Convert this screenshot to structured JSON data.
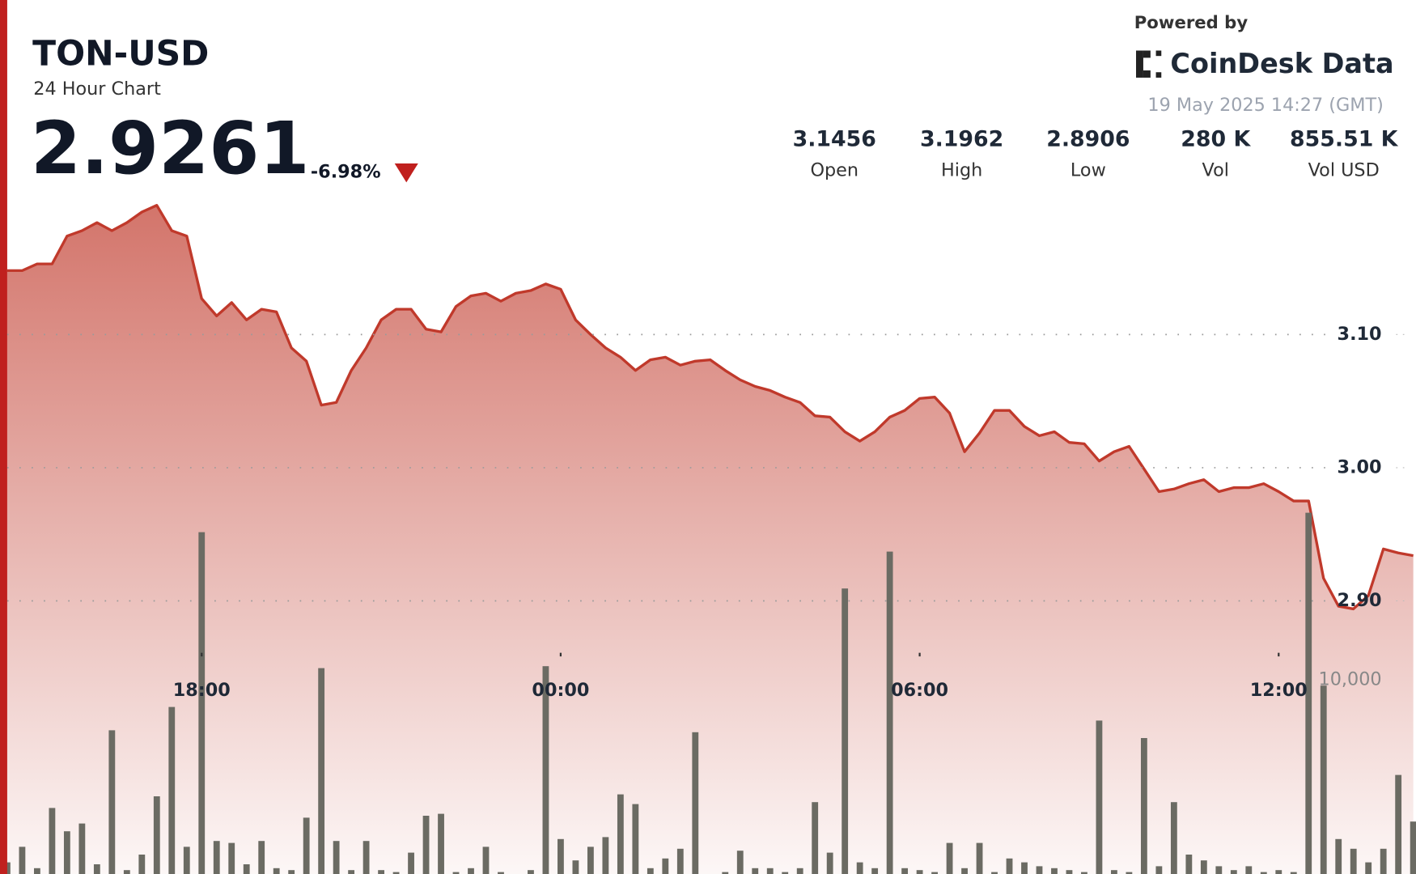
{
  "header": {
    "symbol": "TON-USD",
    "subtitle": "24 Hour Chart",
    "price": 2.9261,
    "change": "-6.98%",
    "powered_by": "Powered by",
    "brand": "CoinDesk Data",
    "timestamp": "19 May 2025 14:27 (GMT)",
    "stats": [
      {
        "value": 3.1456,
        "label": "Open"
      },
      {
        "value": 3.1962,
        "label": "High"
      },
      {
        "value": 2.8906,
        "label": "Low"
      },
      {
        "value": "280 K",
        "label": "Vol"
      },
      {
        "value": "855.51 K",
        "label": "Vol USD"
      }
    ]
  },
  "chart_data": {
    "type": "area",
    "x": [
      "14:45",
      "15:00",
      "15:15",
      "15:30",
      "15:45",
      "16:00",
      "16:15",
      "16:30",
      "16:45",
      "17:00",
      "17:15",
      "17:30",
      "17:45",
      "18:00",
      "18:15",
      "18:30",
      "18:45",
      "19:00",
      "19:15",
      "19:30",
      "19:45",
      "20:00",
      "20:15",
      "20:30",
      "20:45",
      "21:00",
      "21:15",
      "21:30",
      "21:45",
      "22:00",
      "22:15",
      "22:30",
      "22:45",
      "23:00",
      "23:15",
      "23:30",
      "23:45",
      "00:00",
      "00:15",
      "00:30",
      "00:45",
      "01:00",
      "01:15",
      "01:30",
      "01:45",
      "02:00",
      "02:15",
      "02:30",
      "02:45",
      "03:00",
      "03:15",
      "03:30",
      "03:45",
      "04:00",
      "04:15",
      "04:30",
      "04:45",
      "05:00",
      "05:15",
      "05:30",
      "05:45",
      "06:00",
      "06:15",
      "06:30",
      "06:45",
      "07:00",
      "07:15",
      "07:30",
      "07:45",
      "08:00",
      "08:15",
      "08:30",
      "08:45",
      "09:00",
      "09:15",
      "09:30",
      "09:45",
      "10:00",
      "10:15",
      "10:30",
      "10:45",
      "11:00",
      "11:15",
      "11:30",
      "11:45",
      "12:00",
      "12:15",
      "12:30",
      "12:45",
      "13:00",
      "13:15",
      "13:30",
      "13:45",
      "14:00",
      "14:15"
    ],
    "series": [
      {
        "name": "Price",
        "color": "#c0392b",
        "values": [
          3.148,
          3.148,
          3.153,
          3.153,
          3.174,
          3.178,
          3.184,
          3.178,
          3.184,
          3.192,
          3.197,
          3.178,
          3.174,
          3.127,
          3.114,
          3.124,
          3.111,
          3.119,
          3.117,
          3.09,
          3.08,
          3.047,
          3.049,
          3.073,
          3.09,
          3.111,
          3.119,
          3.119,
          3.104,
          3.102,
          3.121,
          3.129,
          3.131,
          3.125,
          3.131,
          3.133,
          3.138,
          3.134,
          3.111,
          3.1,
          3.09,
          3.083,
          3.073,
          3.081,
          3.083,
          3.077,
          3.08,
          3.081,
          3.073,
          3.066,
          3.061,
          3.058,
          3.053,
          3.049,
          3.039,
          3.038,
          3.027,
          3.02,
          3.027,
          3.038,
          3.043,
          3.052,
          3.053,
          3.041,
          3.012,
          3.026,
          3.043,
          3.043,
          3.031,
          3.024,
          3.027,
          3.019,
          3.018,
          3.005,
          3.012,
          3.016,
          2.999,
          2.982,
          2.984,
          2.988,
          2.991,
          2.982,
          2.985,
          2.985,
          2.988,
          2.982,
          2.975,
          2.975,
          2.917,
          2.896,
          2.894,
          2.904,
          2.939,
          2.936,
          2.934
        ]
      },
      {
        "name": "Volume",
        "color": "#6b6b63",
        "axis": "y2",
        "values": [
          600,
          1400,
          300,
          3400,
          2200,
          2600,
          500,
          7400,
          200,
          1000,
          4000,
          8600,
          1400,
          17600,
          1700,
          1600,
          500,
          1700,
          300,
          200,
          2900,
          10600,
          1700,
          200,
          1700,
          200,
          100,
          1100,
          3000,
          3100,
          100,
          300,
          1400,
          100,
          0,
          200,
          10700,
          1800,
          700,
          1400,
          1900,
          4100,
          3600,
          300,
          800,
          1300,
          7300,
          0,
          100,
          1200,
          300,
          300,
          100,
          300,
          3700,
          1100,
          14700,
          600,
          300,
          16600,
          300,
          200,
          100,
          1600,
          300,
          1600,
          100,
          800,
          600,
          400,
          300,
          200,
          100,
          7900,
          200,
          100,
          7000,
          400,
          3700,
          1000,
          700,
          400,
          200,
          400,
          100,
          200,
          100,
          18600,
          9700,
          1800,
          1300,
          600,
          1300,
          5100,
          2700
        ]
      }
    ],
    "xticks": [
      "18:00",
      "00:00",
      "06:00",
      "12:00"
    ],
    "ylim": [
      2.7,
      3.2
    ],
    "yticks": [
      {
        "value": 2.9,
        "label": "2.90"
      },
      {
        "value": 3.0,
        "label": "3.00"
      },
      {
        "value": 3.1,
        "label": "3.10"
      }
    ],
    "y2lim": [
      0,
      45000
    ],
    "y2ticks": [
      {
        "value": 10000,
        "label": "10,000"
      }
    ],
    "grid": true
  }
}
